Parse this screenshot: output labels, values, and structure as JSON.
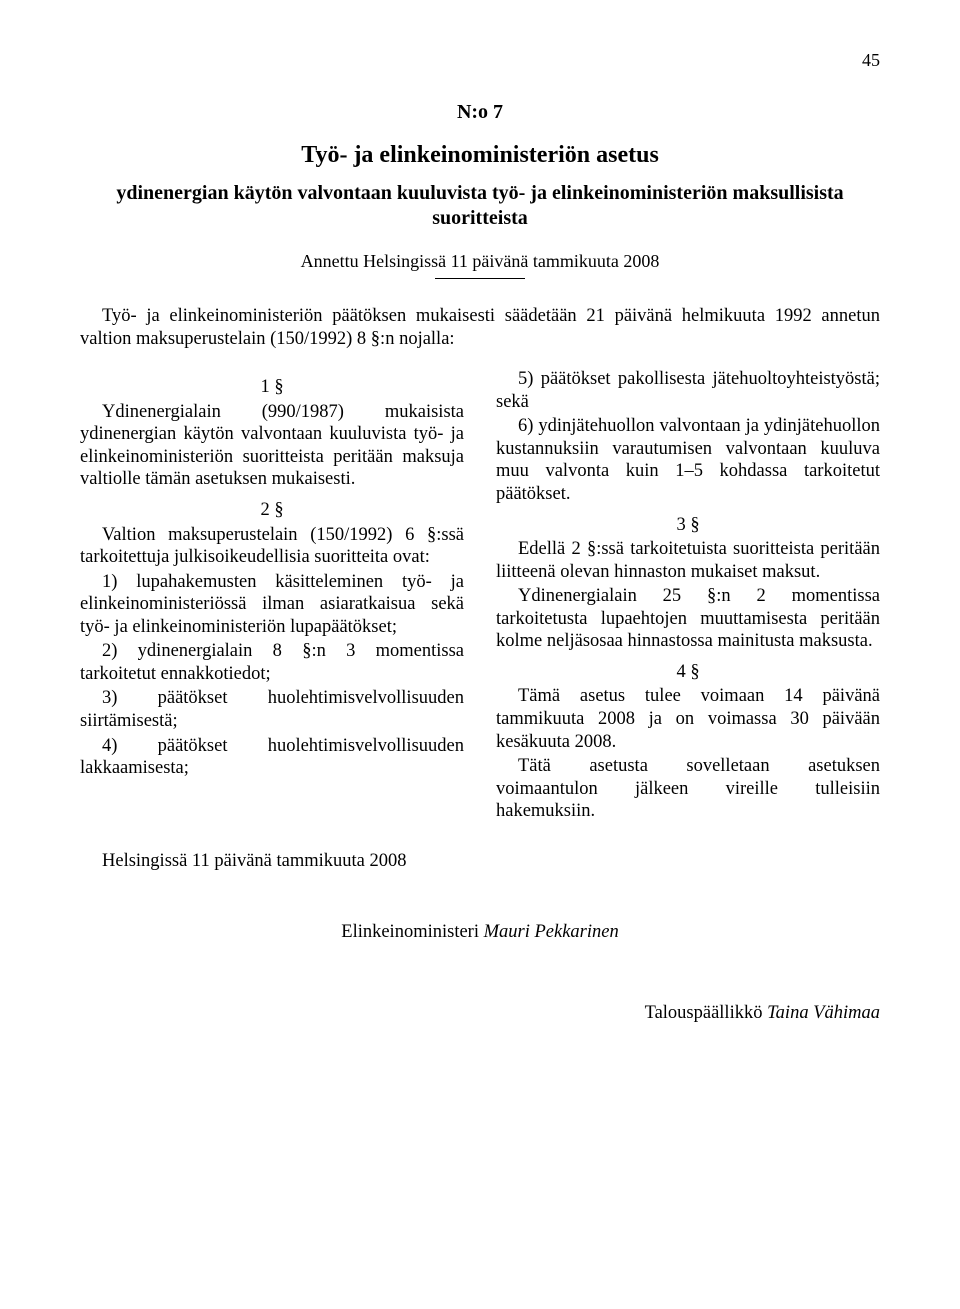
{
  "page_number": "45",
  "doc_number": "N:o 7",
  "title": "Työ- ja elinkeinoministeriön asetus",
  "subtitle": "ydinenergian käytön valvontaan kuuluvista työ- ja elinkeinoministeriön maksullisista suoritteista",
  "given_at": "Annettu Helsingissä 11 päivänä tammikuuta 2008",
  "preamble": "Työ- ja elinkeinoministeriön päätöksen mukaisesti säädetään 21 päivänä helmikuuta 1992 annetun valtion maksuperustelain (150/1992) 8 §:n nojalla:",
  "s1": {
    "num": "1 §",
    "text": "Ydinenergialain (990/1987) mukaisista ydinenergian käytön valvontaan kuuluvista työ- ja elinkeinoministeriön suoritteista peritään maksuja valtiolle tämän asetuksen mukaisesti."
  },
  "s2": {
    "num": "2 §",
    "lead": "Valtion maksuperustelain (150/1992) 6 §:ssä tarkoitettuja julkisoikeudellisia suoritteita ovat:",
    "i1": "1) lupahakemusten käsitteleminen työ- ja elinkeinoministeriössä ilman asiaratkaisua sekä työ- ja elinkeinoministeriön lupapäätökset;",
    "i2": "2) ydinenergialain 8 §:n 3 momentissa tarkoitetut ennakkotiedot;",
    "i3": "3) päätökset huolehtimisvelvollisuuden siirtämisestä;",
    "i4": "4) päätökset huolehtimisvelvollisuuden lakkaamisesta;",
    "i5": "5) päätökset pakollisesta jätehuoltoyhteistyöstä; sekä",
    "i6": "6) ydinjätehuollon valvontaan ja ydinjätehuollon kustannuksiin varautumisen valvontaan kuuluva muu valvonta kuin 1–5 kohdassa tarkoitetut päätökset."
  },
  "s3": {
    "num": "3 §",
    "p1": "Edellä 2 §:ssä tarkoitetuista suoritteista peritään liitteenä olevan hinnaston mukaiset maksut.",
    "p2": "Ydinenergialain 25 §:n 2 momentissa tarkoitetusta lupaehtojen muuttamisesta peritään kolme neljäsosaa hinnastossa mainitusta maksusta."
  },
  "s4": {
    "num": "4 §",
    "p1": "Tämä asetus tulee voimaan 14 päivänä tammikuuta 2008 ja on voimassa 30 päivään kesäkuuta 2008.",
    "p2": "Tätä asetusta sovelletaan asetuksen voimaantulon jälkeen vireille tulleisiin hakemuksiin."
  },
  "closing": "Helsingissä 11 päivänä tammikuuta 2008",
  "minister_title": "Elinkeinoministeri",
  "minister_name": "Mauri Pekkarinen",
  "official_title": "Talouspäällikkö",
  "official_name": "Taina Vähimaa"
}
